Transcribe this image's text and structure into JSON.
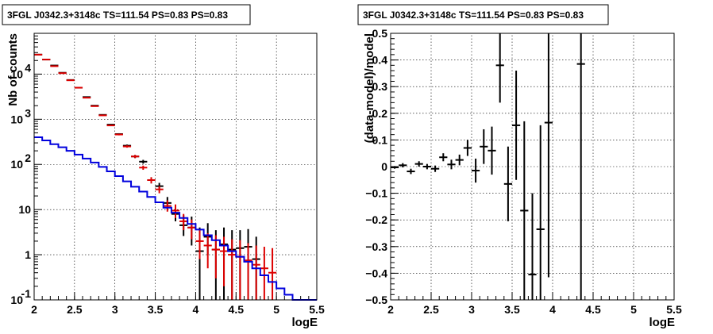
{
  "chart_data": [
    {
      "type": "scatter",
      "title": "3FGL J0342.3+3148c TS=111.54 PS=0.83 PS=0.83",
      "xlabel": "logE",
      "ylabel": "Nb of counts",
      "xlim": [
        2,
        5.5
      ],
      "ylim": [
        0.1,
        80000
      ],
      "yscale": "log",
      "grid": true,
      "xticks": [
        "2",
        "2.5",
        "3",
        "3.5",
        "4",
        "4.5",
        "5",
        "5.5"
      ],
      "yticks": [
        {
          "v": 0.1,
          "label": "10",
          "exp": "-1"
        },
        {
          "v": 1,
          "label": "1",
          "exp": ""
        },
        {
          "v": 10,
          "label": "10",
          "exp": ""
        },
        {
          "v": 100,
          "label": "10",
          "exp": "2"
        },
        {
          "v": 1000,
          "label": "10",
          "exp": "3"
        },
        {
          "v": 10000,
          "label": "10",
          "exp": "4"
        }
      ],
      "series": [
        {
          "color": "#000000",
          "kind": "points",
          "x": [
            2.05,
            2.15,
            2.25,
            2.35,
            2.45,
            2.55,
            2.65,
            2.75,
            2.85,
            2.95,
            3.05,
            3.15,
            3.25,
            3.35,
            3.45,
            3.55,
            3.65,
            3.75,
            3.85,
            3.95,
            4.05,
            4.15,
            4.25,
            4.35,
            4.45,
            4.55,
            4.65,
            4.75
          ],
          "y": [
            27000,
            21000,
            15500,
            10700,
            7400,
            5000,
            3100,
            2000,
            1250,
            760,
            470,
            260,
            150,
            115,
            45,
            33,
            14,
            8,
            4.5,
            4,
            1.2,
            2.5,
            1.3,
            1.7,
            1.3,
            1.4,
            1.5,
            0.8
          ],
          "yerr_low": [
            26800,
            20800,
            15350,
            10600,
            7330,
            4930,
            3040,
            1960,
            1220,
            740,
            450,
            245,
            138,
            104,
            38,
            27,
            10,
            5.5,
            2.6,
            1.6,
            0,
            1,
            0,
            0,
            0,
            0,
            0,
            0
          ],
          "yerr_high": [
            27200,
            21200,
            15650,
            10800,
            7470,
            5070,
            3160,
            2040,
            1280,
            780,
            490,
            275,
            162,
            126,
            52,
            39,
            19,
            11,
            7.5,
            7,
            4,
            5,
            3.5,
            4,
            3.5,
            3.5,
            3.7,
            2.5
          ]
        },
        {
          "color": "#dd0000",
          "kind": "points",
          "x": [
            2.05,
            2.15,
            2.25,
            2.35,
            2.45,
            2.55,
            2.65,
            2.75,
            2.85,
            2.95,
            3.05,
            3.15,
            3.25,
            3.35,
            3.45,
            3.55,
            3.65,
            3.75,
            3.85,
            3.95,
            4.05,
            4.15,
            4.25,
            4.35,
            4.45,
            4.55,
            4.65,
            4.75,
            4.85,
            4.95
          ],
          "y": [
            27000,
            21000,
            15000,
            10500,
            7300,
            5000,
            3000,
            1950,
            1220,
            730,
            460,
            250,
            150,
            85,
            45,
            28,
            12,
            9.5,
            5.5,
            4,
            2,
            1.6,
            1.3,
            1.2,
            1,
            0.9,
            0.75,
            0.6,
            0.5,
            0.4
          ],
          "yerr_low": [
            26800,
            20800,
            14850,
            10400,
            7230,
            4930,
            2940,
            1910,
            1190,
            710,
            440,
            235,
            138,
            76,
            38,
            23,
            9,
            6.5,
            3.5,
            2.2,
            0.8,
            0.5,
            0.3,
            0.2,
            0.1,
            0.1,
            0.1,
            0.1,
            0.1,
            0.1
          ],
          "yerr_high": [
            27200,
            21200,
            15150,
            10600,
            7370,
            5070,
            3060,
            1990,
            1250,
            750,
            480,
            265,
            162,
            94,
            52,
            33,
            16,
            13,
            8,
            6,
            3.5,
            3,
            2.7,
            2.5,
            2.2,
            2.1,
            1.8,
            1.6,
            1.5,
            1.4
          ]
        },
        {
          "color": "#0000dd",
          "kind": "step",
          "edges": [
            2.0,
            2.1,
            2.2,
            2.3,
            2.4,
            2.5,
            2.6,
            2.7,
            2.8,
            2.9,
            3.0,
            3.1,
            3.2,
            3.3,
            3.4,
            3.5,
            3.6,
            3.7,
            3.8,
            3.9,
            4.0,
            4.1,
            4.2,
            4.3,
            4.4,
            4.5,
            4.6,
            4.7,
            4.8,
            4.9,
            5.0,
            5.1,
            5.2,
            5.3,
            5.4,
            5.5
          ],
          "values": [
            400,
            340,
            280,
            240,
            200,
            165,
            135,
            110,
            88,
            70,
            55,
            42,
            32,
            25,
            19,
            14.5,
            11,
            8.5,
            6.5,
            4.8,
            3.6,
            2.7,
            2.1,
            1.6,
            1.2,
            0.9,
            0.7,
            0.5,
            0.35,
            0.25,
            0.18,
            0.13,
            0.1,
            0.1,
            0.1
          ]
        }
      ]
    },
    {
      "type": "scatter",
      "title": "3FGL J0342.3+3148c TS=111.54 PS=0.83 PS=0.83",
      "xlabel": "logE",
      "ylabel": "(data-model)/model",
      "xlim": [
        2,
        5.5
      ],
      "ylim": [
        -0.5,
        0.5
      ],
      "grid": true,
      "xticks": [
        "2",
        "2.5",
        "3",
        "3.5",
        "4",
        "4.5",
        "5",
        "5.5"
      ],
      "yticks": [
        "−0.5",
        "−0.4",
        "−0.3",
        "−0.2",
        "−0.1",
        "0",
        "0.1",
        "0.2",
        "0.3",
        "0.4",
        "0.5"
      ],
      "series": [
        {
          "color": "#000000",
          "kind": "points",
          "x": [
            2.05,
            2.15,
            2.25,
            2.35,
            2.45,
            2.55,
            2.65,
            2.75,
            2.85,
            2.95,
            3.05,
            3.15,
            3.25,
            3.35,
            3.45,
            3.55,
            3.65,
            3.75,
            3.85,
            3.95,
            4.35
          ],
          "y": [
            -0.003,
            0.005,
            -0.018,
            0.01,
            0.0,
            -0.008,
            0.035,
            0.008,
            0.025,
            0.07,
            -0.015,
            0.075,
            0.06,
            0.38,
            -0.065,
            0.155,
            -0.165,
            -0.405,
            -0.235,
            0.165,
            0.385
          ],
          "yerr_low": [
            -0.008,
            -0.003,
            -0.028,
            0.0,
            -0.01,
            -0.02,
            0.02,
            -0.01,
            0.005,
            0.04,
            -0.06,
            0.01,
            -0.03,
            0.24,
            -0.205,
            -0.05,
            -0.5,
            -0.5,
            -0.5,
            -0.415,
            -0.5
          ],
          "yerr_high": [
            0.002,
            0.013,
            -0.008,
            0.02,
            0.01,
            0.004,
            0.05,
            0.026,
            0.045,
            0.1,
            0.03,
            0.14,
            0.15,
            0.5,
            0.075,
            0.36,
            0.17,
            -0.1,
            0.155,
            0.5,
            0.5
          ]
        }
      ]
    }
  ]
}
